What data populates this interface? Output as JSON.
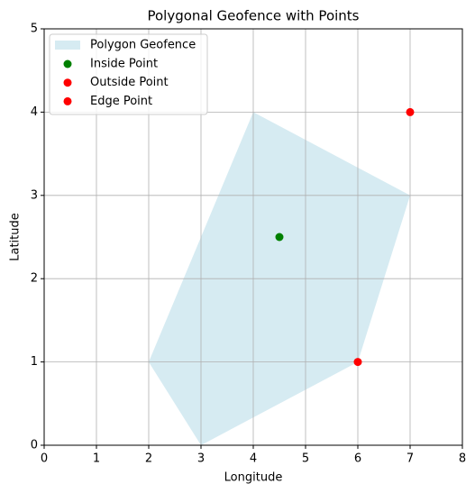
{
  "chart_data": {
    "type": "scatter",
    "title": "Polygonal Geofence with Points",
    "x_label": "Longitude",
    "y_label": "Latitude",
    "xlim": [
      0,
      8
    ],
    "ylim": [
      0,
      5
    ],
    "xticks": [
      0,
      1,
      2,
      3,
      4,
      5,
      6,
      7,
      8
    ],
    "yticks": [
      0,
      1,
      2,
      3,
      4,
      5
    ],
    "grid": true,
    "legend": "upper left",
    "polygon": {
      "name": "Polygon Geofence",
      "color": "#add8e6",
      "x": [
        2,
        4,
        7,
        6,
        3
      ],
      "y": [
        1,
        4,
        3,
        1,
        0
      ]
    },
    "series": [
      {
        "name": "Inside Point",
        "color": "#008000",
        "x": [
          4.5
        ],
        "y": [
          2.5
        ]
      },
      {
        "name": "Outside Point",
        "color": "#ff0000",
        "x": [
          7
        ],
        "y": [
          4
        ]
      },
      {
        "name": "Edge Point",
        "color": "#ff0000",
        "x": [
          6
        ],
        "y": [
          1
        ]
      }
    ]
  }
}
